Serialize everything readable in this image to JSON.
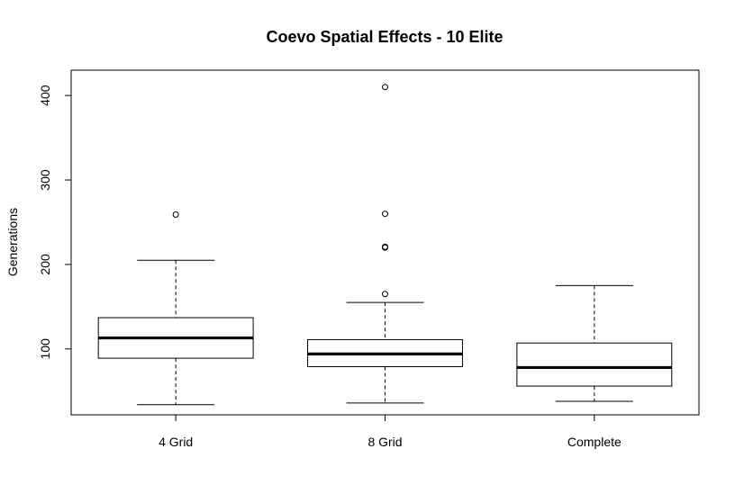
{
  "chart_data": {
    "type": "box",
    "title": "Coevo Spatial Effects - 10 Elite",
    "xlabel": "",
    "ylabel": "Generations",
    "ylim": [
      22,
      430
    ],
    "yticks": [
      100,
      200,
      300,
      400
    ],
    "grid": false,
    "categories": [
      "4 Grid",
      "8 Grid",
      "Complete"
    ],
    "boxes": [
      {
        "name": "4 Grid",
        "whisker_low": 34,
        "q1": 89,
        "median": 113,
        "q3": 137,
        "whisker_high": 205,
        "outliers": [
          259
        ]
      },
      {
        "name": "8 Grid",
        "whisker_low": 36,
        "q1": 79,
        "median": 94,
        "q3": 111,
        "whisker_high": 155,
        "outliers": [
          165,
          220,
          221,
          260,
          410
        ]
      },
      {
        "name": "Complete",
        "whisker_low": 38,
        "q1": 56,
        "median": 78,
        "q3": 107,
        "whisker_high": 175,
        "outliers": []
      }
    ]
  }
}
